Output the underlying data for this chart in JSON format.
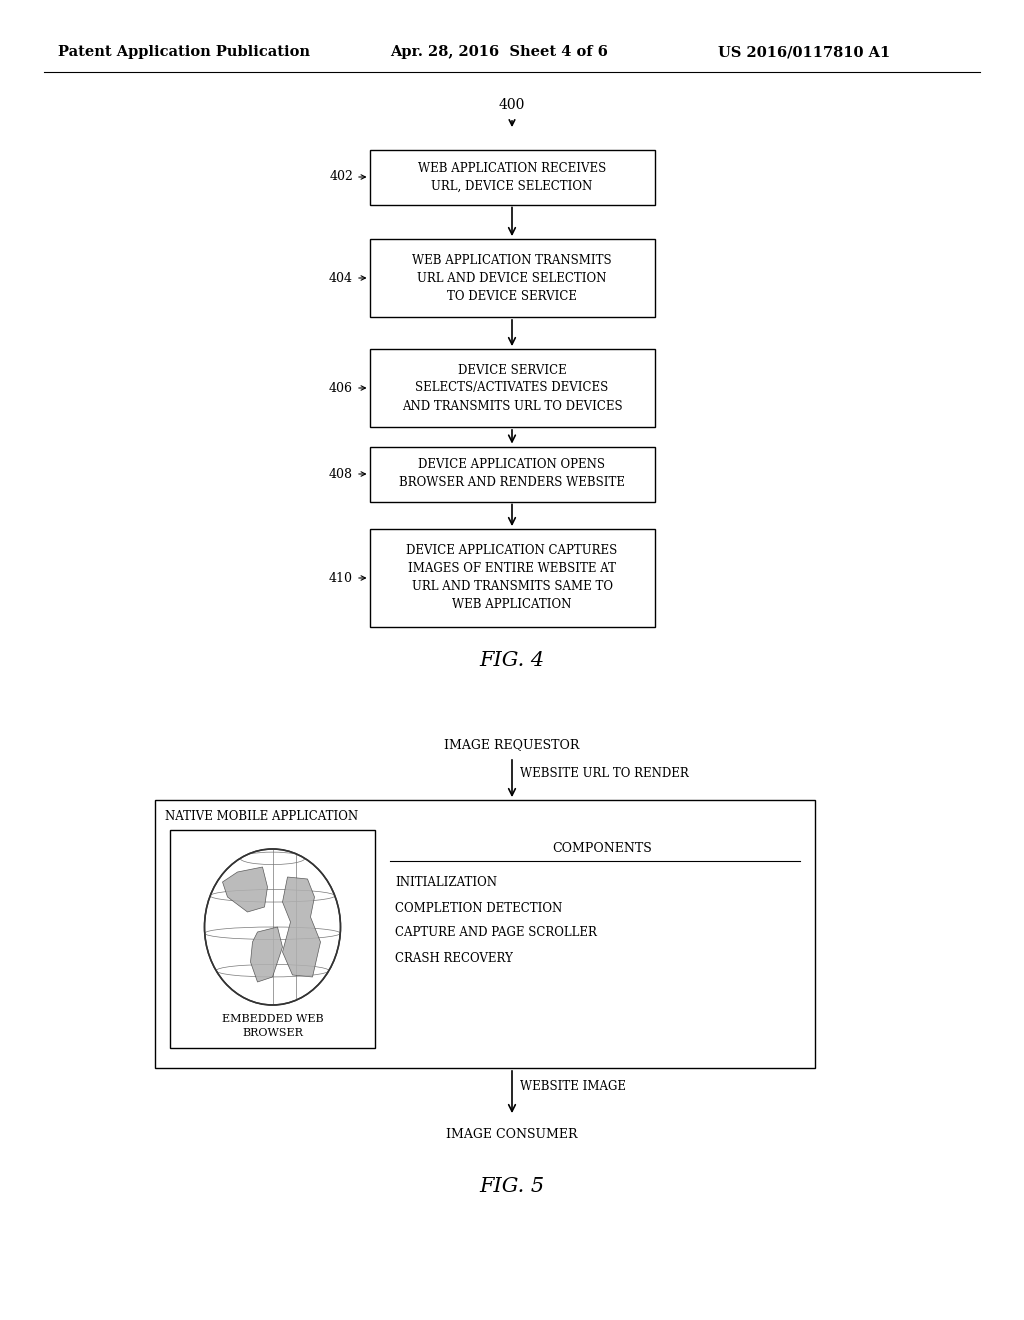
{
  "background_color": "#ffffff",
  "header_left": "Patent Application Publication",
  "header_center": "Apr. 28, 2016  Sheet 4 of 6",
  "header_right": "US 2016/0117810 A1",
  "fig4_label": "400",
  "fig4_boxes": [
    {
      "id": "402",
      "label": "WEB APPLICATION RECEIVES\nURL, DEVICE SELECTION"
    },
    {
      "id": "404",
      "label": "WEB APPLICATION TRANSMITS\nURL AND DEVICE SELECTION\nTO DEVICE SERVICE"
    },
    {
      "id": "406",
      "label": "DEVICE SERVICE\nSELECTS/ACTIVATES DEVICES\nAND TRANSMITS URL TO DEVICES"
    },
    {
      "id": "408",
      "label": "DEVICE APPLICATION OPENS\nBROWSER AND RENDERS WEBSITE"
    },
    {
      "id": "410",
      "label": "DEVICE APPLICATION CAPTURES\nIMAGES OF ENTIRE WEBSITE AT\nURL AND TRANSMITS SAME TO\nWEB APPLICATION"
    }
  ],
  "fig4_caption": "FIG. 4",
  "fig5_caption": "FIG. 5",
  "fig5_image_requestor": "IMAGE REQUESTOR",
  "fig5_website_url_label": "WEBSITE URL TO RENDER",
  "fig5_native_app_label": "NATIVE MOBILE APPLICATION",
  "fig5_browser_label": "EMBEDDED WEB\nBROWSER",
  "fig5_components_title": "COMPONENTS",
  "fig5_components": [
    "INITIALIZATION",
    "COMPLETION DETECTION",
    "CAPTURE AND PAGE SCROLLER",
    "CRASH RECOVERY"
  ],
  "fig5_website_image_label": "WEBSITE IMAGE",
  "fig5_image_consumer": "IMAGE CONSUMER"
}
